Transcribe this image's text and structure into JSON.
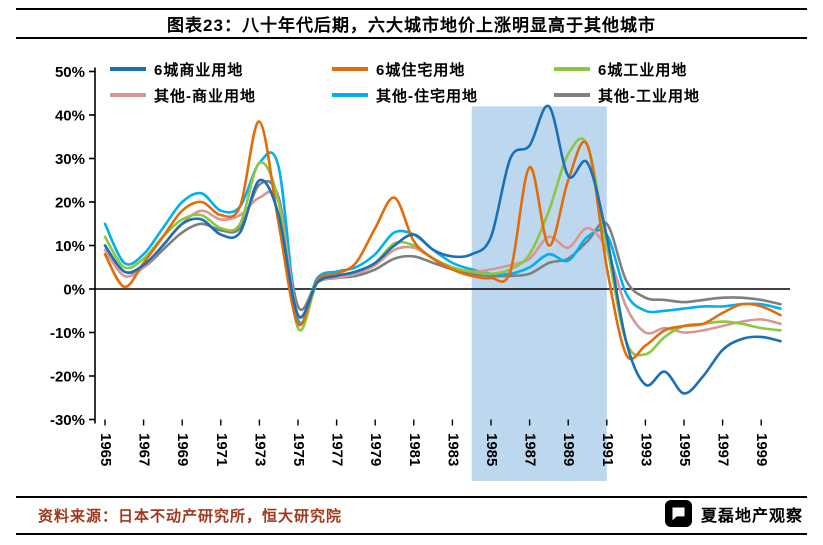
{
  "title": "图表23：八十年代后期，六大城市地价上涨明显高于其他城市",
  "source": "资料来源：日本不动产研究所，恒大研究院",
  "source_color": "#A0391C",
  "watermark": "夏磊地产观察",
  "chart_data": {
    "type": "line",
    "title": "图表23：八十年代后期，六大城市地价上涨明显高于其他城市",
    "xlabel": "",
    "ylabel": "",
    "ylim": [
      -30,
      50
    ],
    "ytick_step": 10,
    "ytick_suffix": "%",
    "grid": false,
    "legend_position": "top",
    "highlight_region": {
      "from": 1984,
      "to": 1991,
      "top_value": 42,
      "color": "#BDD8EE"
    },
    "x": [
      1965,
      1966,
      1967,
      1968,
      1969,
      1970,
      1971,
      1972,
      1973,
      1974,
      1975,
      1976,
      1977,
      1978,
      1979,
      1980,
      1981,
      1982,
      1983,
      1984,
      1985,
      1986,
      1987,
      1988,
      1989,
      1990,
      1991,
      1992,
      1993,
      1994,
      1995,
      1996,
      1997,
      1998,
      1999,
      2000
    ],
    "xticks": [
      1965,
      1967,
      1969,
      1971,
      1973,
      1975,
      1977,
      1979,
      1981,
      1983,
      1985,
      1987,
      1989,
      1991,
      1993,
      1995,
      1997,
      1999
    ],
    "series": [
      {
        "key": "six-city-commercial",
        "name": "6城商业用地",
        "color": "#1B6FB5",
        "values": [
          10,
          4,
          5.5,
          10,
          15,
          16,
          12.5,
          13,
          25,
          17,
          -6,
          1.5,
          3,
          4,
          6,
          10,
          12.5,
          9,
          7.5,
          8,
          12,
          30,
          33,
          42,
          26,
          29,
          12,
          -12,
          -22,
          -19,
          -24,
          -20,
          -14,
          -11.5,
          -11,
          -12
        ]
      },
      {
        "key": "six-city-residential",
        "name": "6城住宅用地",
        "color": "#E36C0A",
        "values": [
          8,
          0.5,
          6,
          12,
          18,
          20,
          17,
          19,
          38.5,
          15,
          -8,
          2,
          3.5,
          6,
          14,
          21,
          11,
          7,
          4.5,
          3,
          2.5,
          4,
          28,
          10,
          25,
          33,
          5,
          -15,
          -13,
          -9.5,
          -8.5,
          -8,
          -5.5,
          -3.5,
          -4,
          -6
        ]
      },
      {
        "key": "six-city-industrial",
        "name": "6城工业用地",
        "color": "#8DC63F",
        "values": [
          12,
          5,
          7,
          12,
          16,
          17,
          14,
          15,
          29,
          20,
          -9,
          1.5,
          3,
          4,
          6,
          10.5,
          10,
          7,
          5,
          4,
          3.5,
          4.5,
          8,
          18,
          31,
          33,
          10,
          -12,
          -15,
          -11,
          -8.5,
          -8,
          -7.5,
          -8,
          -9,
          -9.5
        ]
      },
      {
        "key": "other-commercial",
        "name": "其他-商业用地",
        "color": "#D99694",
        "values": [
          9,
          3,
          5,
          10,
          15,
          18,
          16,
          17,
          21,
          20,
          -6,
          1.5,
          2.5,
          3.5,
          5.5,
          9,
          9.5,
          7,
          5,
          4,
          4.5,
          5.5,
          7,
          12,
          9.5,
          14,
          9,
          -4,
          -10,
          -9,
          -10,
          -9.5,
          -8.5,
          -7.5,
          -7,
          -8
        ]
      },
      {
        "key": "other-residential",
        "name": "其他-住宅用地",
        "color": "#00B0F0",
        "values": [
          15,
          6,
          8,
          14,
          20,
          22,
          18,
          19,
          29,
          28,
          -7,
          2.5,
          4,
          5,
          8,
          13,
          12.5,
          9,
          6,
          4.5,
          3.5,
          3.5,
          5,
          8,
          6.5,
          12,
          12.5,
          -1,
          -5,
          -5,
          -4.5,
          -4,
          -4,
          -3.5,
          -3.5,
          -4.5
        ]
      },
      {
        "key": "other-industrial",
        "name": "其他-工业用地",
        "color": "#7F7F7F",
        "values": [
          10,
          4,
          5,
          9,
          13,
          15,
          13.5,
          14,
          24,
          21,
          -4,
          1.5,
          2.5,
          3,
          4.5,
          7,
          7.5,
          6,
          4.5,
          3.5,
          3,
          3,
          3.5,
          6,
          7,
          11,
          15,
          2,
          -2,
          -2.5,
          -3,
          -2.5,
          -2,
          -2,
          -2.5,
          -3.5
        ]
      }
    ]
  }
}
